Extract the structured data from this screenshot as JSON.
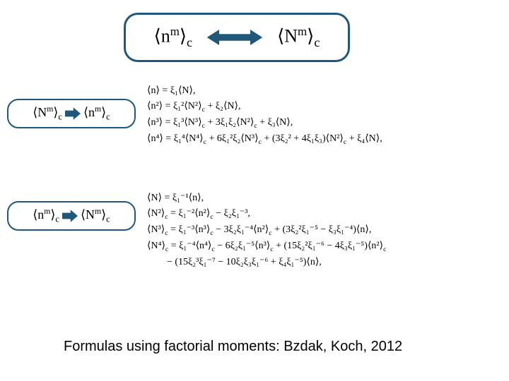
{
  "colors": {
    "box_border": "#21587a",
    "arrow_fill": "#21587a",
    "background": "#ffffff",
    "text": "#000000"
  },
  "top": {
    "left_expr": "⟨n<sup>m</sup>⟩<sub>c</sub>",
    "right_expr": "⟨N<sup>m</sup>⟩<sub>c</sub>"
  },
  "side1": {
    "left": "⟨N<sup>m</sup>⟩<sub>c</sub>",
    "right": "⟨n<sup>m</sup>⟩<sub>c</sub>"
  },
  "side2": {
    "left": "⟨n<sup>m</sup>⟩<sub>c</sub>",
    "right": "⟨N<sup>m</sup>⟩<sub>c</sub>"
  },
  "equations1": {
    "l1": "⟨n⟩ = ξ₁⟨N⟩,",
    "l2": "⟨n²⟩ = ξ₁²⟨N²⟩<sub>c</sub> + ξ₂⟨N⟩,",
    "l3": "⟨n³⟩ = ξ₁³⟨N³⟩<sub>c</sub> + 3ξ₁ξ₂⟨N²⟩<sub>c</sub> + ξ₃⟨N⟩,",
    "l4": "⟨n⁴⟩ = ξ₁⁴⟨N⁴⟩<sub>c</sub> + 6ξ₁²ξ₂⟨N³⟩<sub>c</sub> + (3ξ₂² + 4ξ₁ξ₃)⟨N²⟩<sub>c</sub> + ξ₄⟨N⟩,"
  },
  "equations2": {
    "l1": "⟨N⟩ = ξ₁⁻¹⟨n⟩,",
    "l2": "⟨N²⟩<sub>c</sub> = ξ₁⁻²⟨n²⟩<sub>c</sub> − ξ₂ξ₁⁻³,",
    "l3": "⟨N³⟩<sub>c</sub> = ξ₁⁻³⟨n³⟩<sub>c</sub> − 3ξ₂ξ₁⁻⁴⟨n²⟩<sub>c</sub> + (3ξ₂²ξ₁⁻⁵ − ξ₃ξ₁⁻⁴)⟨n⟩,",
    "l4": "⟨N⁴⟩<sub>c</sub> = ξ₁⁻⁴⟨n⁴⟩<sub>c</sub> − 6ξ₂ξ₁⁻⁵⟨n³⟩<sub>c</sub> + (15ξ₂²ξ₁⁻⁶ − 4ξ₃ξ₁⁻⁵)⟨n²⟩<sub>c</sub>",
    "l5": "&nbsp;&nbsp;&nbsp;&nbsp;&nbsp;&nbsp;&nbsp;&nbsp;− (15ξ₂³ξ₁⁻⁷ − 10ξ₂ξ₃ξ₁⁻⁶ + ξ₄ξ₁⁻⁵)⟨n⟩,"
  },
  "caption": "Formulas using factorial moments: Bzdak, Koch, 2012"
}
